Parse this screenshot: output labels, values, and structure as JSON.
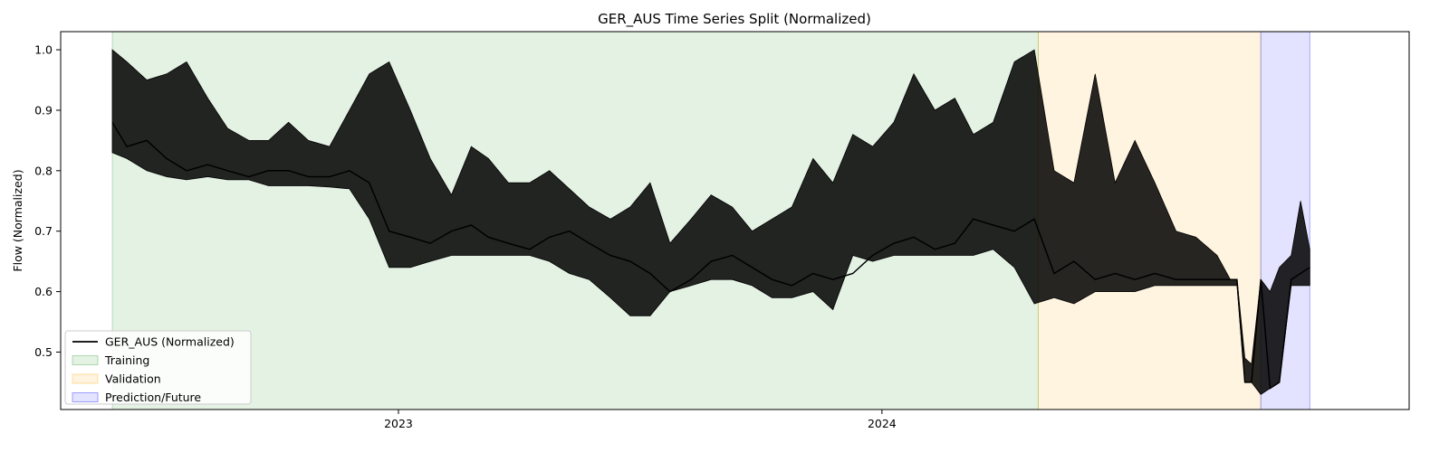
{
  "chart_data": {
    "type": "line",
    "title": "GER_AUS Time Series Split (Normalized)",
    "xlabel": "",
    "ylabel": "Flow (Normalized)",
    "x_ticks": [
      {
        "label": "2023",
        "date": "2023-01-01"
      },
      {
        "label": "2024",
        "date": "2024-01-01"
      }
    ],
    "y_ticks": [
      0.5,
      0.6,
      0.7,
      0.8,
      0.9,
      1.0
    ],
    "xlim": [
      "2022-04-21",
      "2025-02-02"
    ],
    "ylim": [
      0.405,
      1.03
    ],
    "grid": false,
    "legend_position": "lower-left",
    "regions": [
      {
        "name": "Training",
        "start": "2022-05-30",
        "end": "2024-04-28",
        "color": "#2e9e2e",
        "opacity": 0.13
      },
      {
        "name": "Validation",
        "start": "2024-04-28",
        "end": "2024-10-13",
        "color": "#ffa500",
        "opacity": 0.12
      },
      {
        "name": "Prediction/Future",
        "start": "2024-10-13",
        "end": "2024-11-19",
        "color": "#0000ff",
        "opacity": 0.11
      }
    ],
    "series": [
      {
        "name": "GER_AUS (Normalized)",
        "color": "#000000",
        "x": [
          "2022-05-30",
          "2022-06-10",
          "2022-06-25",
          "2022-07-10",
          "2022-07-25",
          "2022-08-10",
          "2022-08-25",
          "2022-09-10",
          "2022-09-25",
          "2022-10-10",
          "2022-10-25",
          "2022-11-10",
          "2022-11-25",
          "2022-12-10",
          "2022-12-25",
          "2023-01-10",
          "2023-01-25",
          "2023-02-10",
          "2023-02-25",
          "2023-03-10",
          "2023-03-25",
          "2023-04-10",
          "2023-04-25",
          "2023-05-10",
          "2023-05-25",
          "2023-06-10",
          "2023-06-25",
          "2023-07-10",
          "2023-07-25",
          "2023-08-10",
          "2023-08-25",
          "2023-09-10",
          "2023-09-25",
          "2023-10-10",
          "2023-10-25",
          "2023-11-10",
          "2023-11-25",
          "2023-12-10",
          "2023-12-25",
          "2024-01-10",
          "2024-01-25",
          "2024-02-10",
          "2024-02-25",
          "2024-03-10",
          "2024-03-25",
          "2024-04-10",
          "2024-04-25",
          "2024-05-10",
          "2024-05-25",
          "2024-06-10",
          "2024-06-25",
          "2024-07-10",
          "2024-07-25",
          "2024-08-10",
          "2024-08-25",
          "2024-09-10",
          "2024-09-20",
          "2024-09-25",
          "2024-10-01",
          "2024-10-06",
          "2024-10-13",
          "2024-10-20",
          "2024-10-27",
          "2024-11-05",
          "2024-11-12",
          "2024-11-19"
        ],
        "y": [
          0.88,
          0.84,
          0.85,
          0.82,
          0.8,
          0.81,
          0.8,
          0.79,
          0.8,
          0.8,
          0.79,
          0.79,
          0.8,
          0.78,
          0.7,
          0.69,
          0.68,
          0.7,
          0.71,
          0.69,
          0.68,
          0.67,
          0.69,
          0.7,
          0.68,
          0.66,
          0.65,
          0.63,
          0.6,
          0.62,
          0.65,
          0.66,
          0.64,
          0.62,
          0.61,
          0.63,
          0.62,
          0.63,
          0.66,
          0.68,
          0.69,
          0.67,
          0.68,
          0.72,
          0.71,
          0.7,
          0.72,
          0.63,
          0.65,
          0.62,
          0.63,
          0.62,
          0.63,
          0.62,
          0.62,
          0.62,
          0.62,
          0.62,
          0.45,
          0.45,
          0.62,
          0.44,
          0.45,
          0.62,
          0.63,
          0.64
        ],
        "band_low": [
          0.83,
          0.82,
          0.8,
          0.79,
          0.785,
          0.79,
          0.785,
          0.785,
          0.775,
          0.775,
          0.775,
          0.773,
          0.77,
          0.72,
          0.64,
          0.64,
          0.65,
          0.66,
          0.66,
          0.66,
          0.66,
          0.66,
          0.65,
          0.63,
          0.62,
          0.59,
          0.56,
          0.56,
          0.6,
          0.61,
          0.62,
          0.62,
          0.61,
          0.59,
          0.59,
          0.6,
          0.57,
          0.66,
          0.65,
          0.66,
          0.66,
          0.66,
          0.66,
          0.66,
          0.67,
          0.64,
          0.58,
          0.59,
          0.58,
          0.6,
          0.6,
          0.6,
          0.61,
          0.61,
          0.61,
          0.61,
          0.61,
          0.61,
          0.45,
          0.45,
          0.43,
          0.44,
          0.45,
          0.61,
          0.61,
          0.61
        ],
        "band_high": [
          1.0,
          0.98,
          0.95,
          0.96,
          0.98,
          0.92,
          0.87,
          0.85,
          0.85,
          0.88,
          0.85,
          0.84,
          0.9,
          0.96,
          0.98,
          0.9,
          0.82,
          0.76,
          0.84,
          0.82,
          0.78,
          0.78,
          0.8,
          0.77,
          0.74,
          0.72,
          0.74,
          0.78,
          0.68,
          0.72,
          0.76,
          0.74,
          0.7,
          0.72,
          0.74,
          0.82,
          0.78,
          0.86,
          0.84,
          0.88,
          0.96,
          0.9,
          0.92,
          0.86,
          0.88,
          0.98,
          1.0,
          0.8,
          0.78,
          0.96,
          0.78,
          0.85,
          0.78,
          0.7,
          0.69,
          0.66,
          0.62,
          0.62,
          0.49,
          0.48,
          0.62,
          0.6,
          0.64,
          0.66,
          0.75,
          0.67
        ]
      }
    ]
  }
}
